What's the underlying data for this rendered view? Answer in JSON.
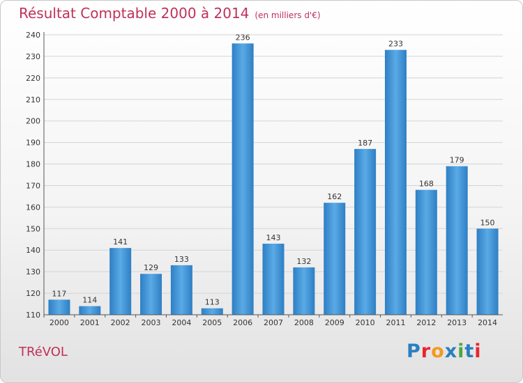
{
  "header": {
    "title": "Résultat Comptable 2000 à 2014",
    "subtitle": "(en milliers d'€)"
  },
  "footer": {
    "town": "TRéVOL",
    "logo_text": "Proxiti",
    "logo_colors": [
      "#2a7fc0",
      "#e8262f",
      "#f39a1e",
      "#2a7fc0",
      "#4aa83d",
      "#2a7fc0",
      "#e8262f"
    ]
  },
  "chart_data": {
    "type": "bar",
    "categories": [
      "2000",
      "2001",
      "2002",
      "2003",
      "2004",
      "2005",
      "2006",
      "2007",
      "2008",
      "2009",
      "2010",
      "2011",
      "2012",
      "2013",
      "2014"
    ],
    "values": [
      117,
      114,
      141,
      129,
      133,
      113,
      236,
      143,
      132,
      162,
      187,
      233,
      168,
      179,
      150
    ],
    "title": "Résultat Comptable 2000 à 2014",
    "subtitle": "(en milliers d'€)",
    "xlabel": "",
    "ylabel": "",
    "ylim": [
      110,
      240
    ],
    "yticks": [
      110,
      120,
      130,
      140,
      150,
      160,
      170,
      180,
      190,
      200,
      210,
      220,
      230,
      240
    ],
    "grid": true,
    "bar_color": "#3f95d6"
  }
}
